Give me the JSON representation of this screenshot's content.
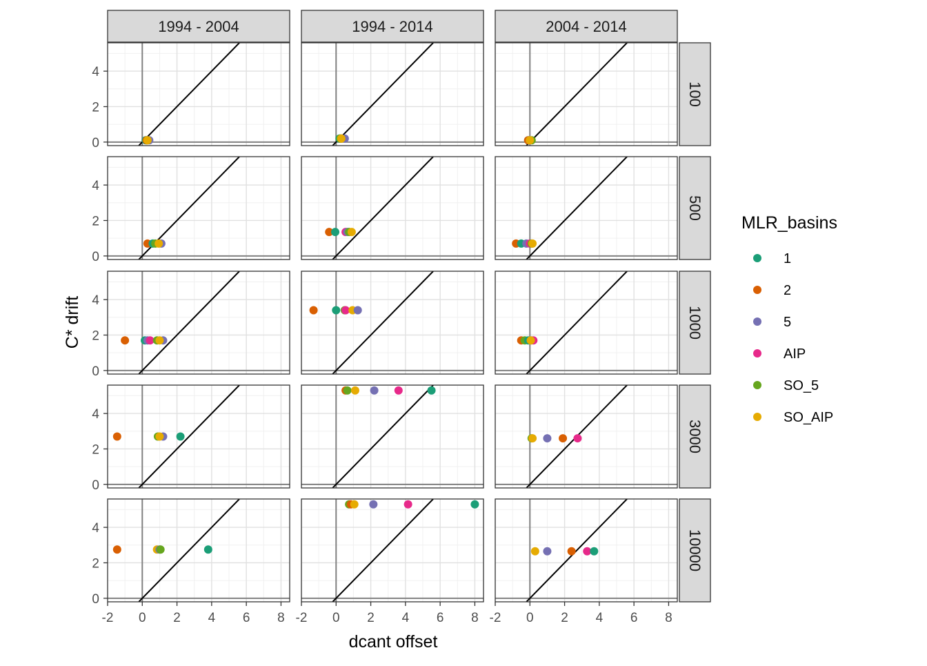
{
  "chart_data": {
    "type": "scatter",
    "facet_columns": [
      "1994 - 2004",
      "1994 - 2014",
      "2004 - 2014"
    ],
    "facet_rows": [
      "100",
      "500",
      "1000",
      "3000",
      "10000"
    ],
    "xlabel": "dcant offset",
    "ylabel": "C* drift",
    "xlim": [
      -2,
      8.5
    ],
    "ylim": [
      -0.2,
      5.6
    ],
    "xticks": [
      -2,
      0,
      2,
      4,
      6,
      8
    ],
    "xtick_labels": [
      "-2",
      "0",
      "2",
      "4",
      "6",
      "8"
    ],
    "yticks": [
      0,
      2,
      4
    ],
    "ytick_labels": [
      "0",
      "2",
      "4"
    ],
    "reference_line": "y = x",
    "grid": true,
    "legend": {
      "title": "MLR_basins",
      "position": "right",
      "entries": [
        "1",
        "2",
        "5",
        "AIP",
        "SO_5",
        "SO_AIP"
      ]
    },
    "colors": {
      "1": "#1b9e77",
      "2": "#d95f02",
      "5": "#7570b3",
      "AIP": "#e7298a",
      "SO_5": "#66a61e",
      "SO_AIP": "#e6ab02"
    },
    "panels": [
      {
        "col": "1994 - 2004",
        "row": "100",
        "points": [
          {
            "series": "1",
            "x": 0.2,
            "y": 0.1
          },
          {
            "series": "2",
            "x": 0.25,
            "y": 0.1
          },
          {
            "series": "5",
            "x": 0.4,
            "y": 0.1
          },
          {
            "series": "SO_5",
            "x": 0.3,
            "y": 0.1
          },
          {
            "series": "SO_AIP",
            "x": 0.3,
            "y": 0.1
          }
        ]
      },
      {
        "col": "1994 - 2014",
        "row": "100",
        "points": [
          {
            "series": "1",
            "x": 0.2,
            "y": 0.2
          },
          {
            "series": "2",
            "x": 0.3,
            "y": 0.2
          },
          {
            "series": "5",
            "x": 0.5,
            "y": 0.2
          },
          {
            "series": "SO_5",
            "x": 0.25,
            "y": 0.2
          },
          {
            "series": "SO_AIP",
            "x": 0.3,
            "y": 0.2
          }
        ]
      },
      {
        "col": "2004 - 2014",
        "row": "100",
        "points": [
          {
            "series": "1",
            "x": -0.1,
            "y": 0.1
          },
          {
            "series": "2",
            "x": -0.1,
            "y": 0.1
          },
          {
            "series": "5",
            "x": 0.0,
            "y": 0.1
          },
          {
            "series": "SO_5",
            "x": 0.1,
            "y": 0.1
          },
          {
            "series": "SO_AIP",
            "x": 0.0,
            "y": 0.1
          }
        ]
      },
      {
        "col": "1994 - 2004",
        "row": "500",
        "points": [
          {
            "series": "2",
            "x": 0.3,
            "y": 0.7
          },
          {
            "series": "1",
            "x": 0.6,
            "y": 0.7
          },
          {
            "series": "SO_5",
            "x": 0.75,
            "y": 0.7
          },
          {
            "series": "5",
            "x": 1.1,
            "y": 0.7
          },
          {
            "series": "SO_AIP",
            "x": 0.95,
            "y": 0.7
          }
        ]
      },
      {
        "col": "1994 - 2014",
        "row": "500",
        "points": [
          {
            "series": "2",
            "x": -0.4,
            "y": 1.35
          },
          {
            "series": "1",
            "x": -0.05,
            "y": 1.35
          },
          {
            "series": "AIP",
            "x": 0.55,
            "y": 1.35
          },
          {
            "series": "5",
            "x": 0.65,
            "y": 1.35
          },
          {
            "series": "SO_5",
            "x": 0.75,
            "y": 1.35
          },
          {
            "series": "SO_AIP",
            "x": 0.9,
            "y": 1.35
          }
        ]
      },
      {
        "col": "2004 - 2014",
        "row": "500",
        "points": [
          {
            "series": "2",
            "x": -0.8,
            "y": 0.7
          },
          {
            "series": "1",
            "x": -0.5,
            "y": 0.7
          },
          {
            "series": "5",
            "x": -0.2,
            "y": 0.7
          },
          {
            "series": "AIP",
            "x": 0.0,
            "y": 0.7
          },
          {
            "series": "SO_5",
            "x": 0.1,
            "y": 0.7
          },
          {
            "series": "SO_AIP",
            "x": 0.15,
            "y": 0.7
          }
        ]
      },
      {
        "col": "1994 - 2004",
        "row": "1000",
        "points": [
          {
            "series": "2",
            "x": -1.0,
            "y": 1.7
          },
          {
            "series": "1",
            "x": 0.15,
            "y": 1.7
          },
          {
            "series": "5",
            "x": 0.3,
            "y": 1.7
          },
          {
            "series": "AIP",
            "x": 0.45,
            "y": 1.7
          },
          {
            "series": "SO_5",
            "x": 0.85,
            "y": 1.7
          },
          {
            "series": "5",
            "x": 1.2,
            "y": 1.7
          },
          {
            "series": "SO_AIP",
            "x": 1.0,
            "y": 1.7
          }
        ]
      },
      {
        "col": "1994 - 2014",
        "row": "1000",
        "points": [
          {
            "series": "2",
            "x": -1.3,
            "y": 3.4
          },
          {
            "series": "1",
            "x": 0.0,
            "y": 3.4
          },
          {
            "series": "SO_5",
            "x": 0.5,
            "y": 3.4
          },
          {
            "series": "AIP",
            "x": 0.55,
            "y": 3.4
          },
          {
            "series": "SO_AIP",
            "x": 0.95,
            "y": 3.4
          },
          {
            "series": "5",
            "x": 1.25,
            "y": 3.4
          }
        ]
      },
      {
        "col": "2004 - 2014",
        "row": "1000",
        "points": [
          {
            "series": "2",
            "x": -0.5,
            "y": 1.7
          },
          {
            "series": "SO_5",
            "x": -0.3,
            "y": 1.7
          },
          {
            "series": "1",
            "x": -0.1,
            "y": 1.7
          },
          {
            "series": "5",
            "x": 0.1,
            "y": 1.7
          },
          {
            "series": "AIP",
            "x": 0.2,
            "y": 1.7
          },
          {
            "series": "SO_AIP",
            "x": 0.05,
            "y": 1.7
          }
        ]
      },
      {
        "col": "1994 - 2004",
        "row": "3000",
        "points": [
          {
            "series": "2",
            "x": -1.45,
            "y": 2.7
          },
          {
            "series": "SO_5",
            "x": 0.9,
            "y": 2.7
          },
          {
            "series": "5",
            "x": 1.2,
            "y": 2.7
          },
          {
            "series": "SO_AIP",
            "x": 1.0,
            "y": 2.7
          },
          {
            "series": "1",
            "x": 2.2,
            "y": 2.7
          }
        ]
      },
      {
        "col": "1994 - 2014",
        "row": "3000",
        "points": [
          {
            "series": "2",
            "x": 0.55,
            "y": 5.3
          },
          {
            "series": "SO_5",
            "x": 0.65,
            "y": 5.3
          },
          {
            "series": "SO_AIP",
            "x": 1.1,
            "y": 5.3
          },
          {
            "series": "5",
            "x": 2.2,
            "y": 5.3
          },
          {
            "series": "AIP",
            "x": 3.6,
            "y": 5.3
          },
          {
            "series": "1",
            "x": 5.5,
            "y": 5.3
          }
        ]
      },
      {
        "col": "2004 - 2014",
        "row": "3000",
        "points": [
          {
            "series": "SO_5",
            "x": 0.1,
            "y": 2.6
          },
          {
            "series": "SO_AIP",
            "x": 0.15,
            "y": 2.6
          },
          {
            "series": "5",
            "x": 1.0,
            "y": 2.6
          },
          {
            "series": "2",
            "x": 1.9,
            "y": 2.6
          },
          {
            "series": "AIP",
            "x": 2.75,
            "y": 2.6
          }
        ]
      },
      {
        "col": "1994 - 2004",
        "row": "10000",
        "points": [
          {
            "series": "2",
            "x": -1.45,
            "y": 2.75
          },
          {
            "series": "SO_AIP",
            "x": 0.85,
            "y": 2.75
          },
          {
            "series": "5",
            "x": 1.0,
            "y": 2.75
          },
          {
            "series": "SO_5",
            "x": 1.05,
            "y": 2.75
          },
          {
            "series": "1",
            "x": 3.8,
            "y": 2.75
          }
        ]
      },
      {
        "col": "1994 - 2014",
        "row": "10000",
        "points": [
          {
            "series": "SO_5",
            "x": 0.75,
            "y": 5.3
          },
          {
            "series": "2",
            "x": 0.85,
            "y": 5.3
          },
          {
            "series": "SO_AIP",
            "x": 1.05,
            "y": 5.3
          },
          {
            "series": "5",
            "x": 2.15,
            "y": 5.3
          },
          {
            "series": "AIP",
            "x": 4.15,
            "y": 5.3
          },
          {
            "series": "1",
            "x": 8.0,
            "y": 5.3
          }
        ]
      },
      {
        "col": "2004 - 2014",
        "row": "10000",
        "points": [
          {
            "series": "SO_AIP",
            "x": 0.3,
            "y": 2.65
          },
          {
            "series": "5",
            "x": 1.0,
            "y": 2.65
          },
          {
            "series": "2",
            "x": 2.4,
            "y": 2.65
          },
          {
            "series": "AIP",
            "x": 3.3,
            "y": 2.65
          },
          {
            "series": "1",
            "x": 3.7,
            "y": 2.65
          }
        ]
      }
    ]
  }
}
